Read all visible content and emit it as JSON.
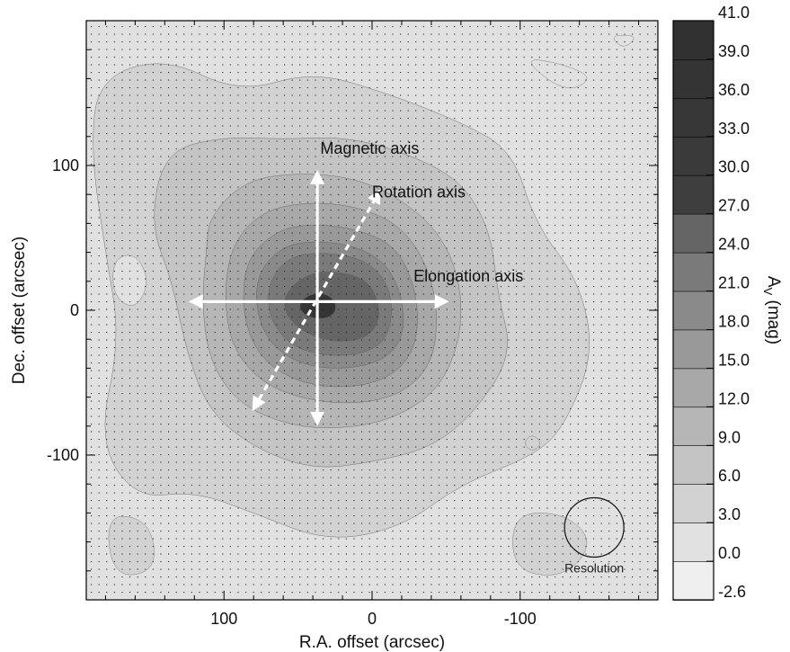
{
  "chart_data": {
    "type": "heatmap",
    "subtype": "filled-contour extinction map",
    "xlabel": "R.A. offset (arcsec)",
    "ylabel": "Dec. offset (arcsec)",
    "xlim": [
      193,
      -193
    ],
    "ylim": [
      -200,
      200
    ],
    "x_ticks": [
      100,
      0,
      -100
    ],
    "x_tick_labels": [
      "100",
      "0",
      "-100"
    ],
    "y_ticks": [
      100,
      0,
      -100
    ],
    "y_tick_labels": [
      "100",
      "0",
      "-100"
    ],
    "colorbar": {
      "label": "A",
      "label_subscript": "V",
      "label_unit": " (mag)",
      "levels": [
        -2.6,
        0.0,
        3.0,
        6.0,
        9.0,
        12.0,
        15.0,
        18.0,
        21.0,
        24.0,
        27.0,
        30.0,
        33.0,
        36.0,
        39.0,
        41.0
      ],
      "level_labels": [
        "-2.6",
        "0.0",
        "3.0",
        "6.0",
        "9.0",
        "12.0",
        "15.0",
        "18.0",
        "21.0",
        "24.0",
        "27.0",
        "30.0",
        "33.0",
        "36.0",
        "39.0",
        "41.0"
      ],
      "colors": [
        "#efefef",
        "#e1e1e1",
        "#d2d2d2",
        "#c4c4c4",
        "#b6b6b6",
        "#a8a8a8",
        "#999999",
        "#8a8a8a",
        "#7a7a7a",
        "#656565",
        "#3e3e3e",
        "#3a3a3a",
        "#373737",
        "#343434",
        "#313131"
      ]
    },
    "contour_rings": [
      {
        "level": 3.0,
        "points": [
          [
            185,
            160
          ],
          [
            140,
            175
          ],
          [
            90,
            150
          ],
          [
            40,
            165
          ],
          [
            -10,
            150
          ],
          [
            -60,
            130
          ],
          [
            -95,
            110
          ],
          [
            -110,
            60
          ],
          [
            -140,
            20
          ],
          [
            -150,
            -30
          ],
          [
            -130,
            -80
          ],
          [
            -110,
            -100
          ],
          [
            -60,
            -120
          ],
          [
            -20,
            -150
          ],
          [
            30,
            -160
          ],
          [
            80,
            -140
          ],
          [
            120,
            -125
          ],
          [
            160,
            -130
          ],
          [
            185,
            -90
          ],
          [
            170,
            -20
          ],
          [
            180,
            40
          ],
          [
            190,
            110
          ]
        ]
      },
      {
        "level": 6.0,
        "points": [
          [
            140,
            110
          ],
          [
            100,
            120
          ],
          [
            60,
            118
          ],
          [
            20,
            120
          ],
          [
            -20,
            110
          ],
          [
            -60,
            90
          ],
          [
            -80,
            55
          ],
          [
            -85,
            10
          ],
          [
            -95,
            -30
          ],
          [
            -70,
            -70
          ],
          [
            -40,
            -95
          ],
          [
            0,
            -105
          ],
          [
            40,
            -110
          ],
          [
            80,
            -95
          ],
          [
            110,
            -70
          ],
          [
            125,
            -30
          ],
          [
            135,
            20
          ],
          [
            150,
            60
          ]
        ]
      },
      {
        "level": 9.0,
        "points": [
          [
            110,
            65
          ],
          [
            85,
            90
          ],
          [
            50,
            95
          ],
          [
            15,
            92
          ],
          [
            -15,
            80
          ],
          [
            -45,
            55
          ],
          [
            -60,
            20
          ],
          [
            -60,
            -20
          ],
          [
            -45,
            -55
          ],
          [
            -15,
            -75
          ],
          [
            20,
            -82
          ],
          [
            55,
            -80
          ],
          [
            90,
            -65
          ],
          [
            110,
            -35
          ],
          [
            115,
            5
          ],
          [
            112,
            40
          ]
        ]
      },
      {
        "level": 12.0,
        "points": [
          [
            95,
            45
          ],
          [
            75,
            68
          ],
          [
            45,
            75
          ],
          [
            10,
            72
          ],
          [
            -20,
            58
          ],
          [
            -38,
            30
          ],
          [
            -45,
            -5
          ],
          [
            -40,
            -38
          ],
          [
            -20,
            -58
          ],
          [
            10,
            -65
          ],
          [
            45,
            -62
          ],
          [
            75,
            -50
          ],
          [
            95,
            -25
          ],
          [
            100,
            10
          ]
        ]
      },
      {
        "level": 15.0,
        "points": [
          [
            85,
            35
          ],
          [
            65,
            55
          ],
          [
            40,
            60
          ],
          [
            10,
            56
          ],
          [
            -15,
            45
          ],
          [
            -28,
            20
          ],
          [
            -32,
            -10
          ],
          [
            -25,
            -35
          ],
          [
            -5,
            -50
          ],
          [
            25,
            -54
          ],
          [
            55,
            -48
          ],
          [
            78,
            -30
          ],
          [
            88,
            0
          ]
        ]
      },
      {
        "level": 18.0,
        "points": [
          [
            78,
            25
          ],
          [
            60,
            45
          ],
          [
            35,
            48
          ],
          [
            10,
            44
          ],
          [
            -10,
            32
          ],
          [
            -20,
            10
          ],
          [
            -22,
            -15
          ],
          [
            -12,
            -32
          ],
          [
            10,
            -40
          ],
          [
            40,
            -40
          ],
          [
            65,
            -28
          ],
          [
            78,
            -5
          ]
        ]
      },
      {
        "level": 21.0,
        "points": [
          [
            70,
            20
          ],
          [
            55,
            38
          ],
          [
            30,
            40
          ],
          [
            5,
            35
          ],
          [
            -10,
            20
          ],
          [
            -14,
            0
          ],
          [
            -10,
            -20
          ],
          [
            5,
            -30
          ],
          [
            30,
            -32
          ],
          [
            55,
            -25
          ],
          [
            70,
            -5
          ]
        ]
      },
      {
        "level": 24.0,
        "points": [
          [
            60,
            10
          ],
          [
            45,
            25
          ],
          [
            25,
            27
          ],
          [
            5,
            22
          ],
          [
            -4,
            8
          ],
          [
            -5,
            -8
          ],
          [
            5,
            -20
          ],
          [
            25,
            -22
          ],
          [
            45,
            -16
          ],
          [
            58,
            -4
          ]
        ]
      },
      {
        "level": 36.0,
        "points": [
          [
            50,
            3
          ],
          [
            44,
            10
          ],
          [
            35,
            12
          ],
          [
            27,
            9
          ],
          [
            24,
            2
          ],
          [
            27,
            -4
          ],
          [
            35,
            -6
          ],
          [
            45,
            -4
          ]
        ]
      }
    ],
    "local_features": [
      {
        "level": 3.0,
        "points": [
          [
            180,
            -140
          ],
          [
            150,
            -145
          ],
          [
            145,
            -180
          ],
          [
            175,
            -185
          ]
        ]
      },
      {
        "level": 3.0,
        "points": [
          [
            -95,
            -140
          ],
          [
            -130,
            -140
          ],
          [
            -150,
            -160
          ],
          [
            -130,
            -185
          ],
          [
            -95,
            -180
          ]
        ]
      },
      {
        "level": 3.0,
        "points": [
          [
            -108,
            -85
          ],
          [
            -115,
            -92
          ],
          [
            -108,
            -98
          ],
          [
            -102,
            -92
          ]
        ]
      },
      {
        "level": 0.0,
        "points": [
          [
            160,
            40
          ],
          [
            150,
            20
          ],
          [
            160,
            0
          ],
          [
            175,
            10
          ],
          [
            175,
            35
          ]
        ]
      },
      {
        "level": 0.0,
        "points": [
          [
            -160,
            190
          ],
          [
            -170,
            180
          ],
          [
            -180,
            190
          ]
        ]
      },
      {
        "level": 0.0,
        "points": [
          [
            -100,
            175
          ],
          [
            -130,
            170
          ],
          [
            -150,
            160
          ],
          [
            -130,
            150
          ]
        ]
      }
    ],
    "annotations": [
      {
        "text": "Magnetic axis",
        "type": "double-arrow",
        "style": "solid",
        "from": [
          37,
          95
        ],
        "to": [
          37,
          -78
        ],
        "label_at": [
          35,
          108
        ]
      },
      {
        "text": "Rotation axis",
        "type": "double-arrow",
        "style": "dashed",
        "from": [
          80,
          -68
        ],
        "to": [
          -5,
          82
        ],
        "label_at": [
          0,
          78
        ]
      },
      {
        "text": "Elongation axis",
        "type": "double-arrow",
        "style": "solid",
        "from": [
          122,
          6
        ],
        "to": [
          -50,
          6
        ],
        "label_at": [
          -28,
          20
        ]
      },
      {
        "text": "Resolution",
        "type": "circle",
        "center": [
          -150,
          -150
        ],
        "radius": 20,
        "label_at": [
          -150,
          -181
        ]
      }
    ],
    "overlay": "regular grid of small black dots",
    "grid": false
  }
}
